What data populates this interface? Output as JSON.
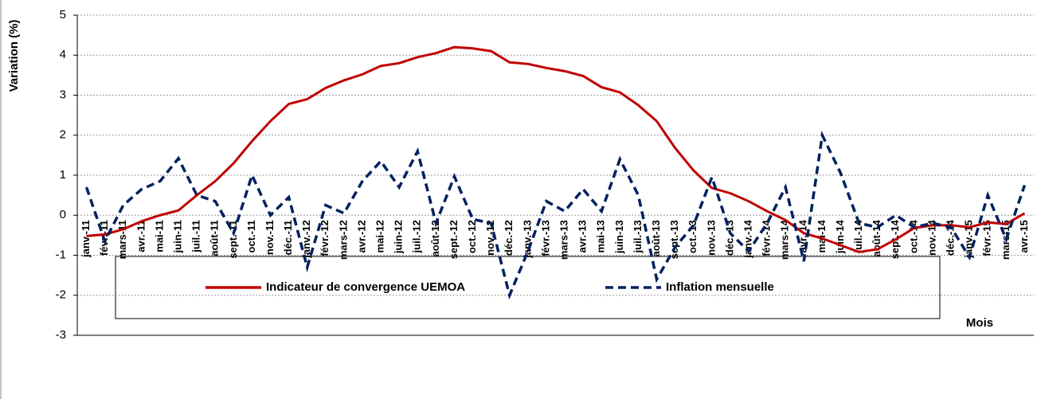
{
  "chart_data": {
    "type": "line",
    "ylabel": "Variation (%)",
    "xlabel": "Mois",
    "categories": [
      "janv.-11",
      "févr.-11",
      "mars-11",
      "avr.-11",
      "mai-11",
      "juin-11",
      "juil.-11",
      "août-11",
      "sept.-11",
      "oct.-11",
      "nov.-11",
      "déc.-11",
      "janv.-12",
      "févr.-12",
      "mars-12",
      "avr.-12",
      "mai-12",
      "juin-12",
      "juil.-12",
      "août-12",
      "sept.-12",
      "oct.-12",
      "nov.-12",
      "déc.-12",
      "janv.-13",
      "févr.-13",
      "mars-13",
      "avr.-13",
      "mai-13",
      "juin-13",
      "juil.-13",
      "août-13",
      "sept.-13",
      "oct.-13",
      "nov.-13",
      "déc.-13",
      "janv.-14",
      "févr.-14",
      "mars-14",
      "avr.-14",
      "mai-14",
      "juin-14",
      "juil.-14",
      "août-14",
      "sept.-14",
      "oct.-14",
      "nov.-14",
      "déc.-14",
      "janv.-15",
      "févr.-15",
      "mars-15",
      "avr.-15"
    ],
    "series": [
      {
        "name": "Indicateur de convergence UEMOA",
        "color": "#c00000",
        "dash": false,
        "values": [
          -0.52,
          -0.48,
          -0.35,
          -0.15,
          0.0,
          0.12,
          0.5,
          0.85,
          1.3,
          1.85,
          2.35,
          2.78,
          2.9,
          3.18,
          3.37,
          3.52,
          3.73,
          3.8,
          3.95,
          4.05,
          4.2,
          4.17,
          4.1,
          3.82,
          3.78,
          3.68,
          3.6,
          3.48,
          3.2,
          3.07,
          2.75,
          2.35,
          1.68,
          1.12,
          0.68,
          0.55,
          0.35,
          0.1,
          -0.12,
          -0.45,
          -0.58,
          -0.75,
          -0.92,
          -0.85,
          -0.6,
          -0.32,
          -0.25,
          -0.25,
          -0.3,
          -0.18,
          -0.22,
          0.05
        ]
      },
      {
        "name": "Inflation mensuelle",
        "color": "#002060",
        "dash": true,
        "values": [
          0.7,
          -0.65,
          0.25,
          0.65,
          0.85,
          1.42,
          0.5,
          0.35,
          -0.45,
          1.0,
          0.0,
          0.45,
          -1.3,
          0.25,
          0.05,
          0.85,
          1.35,
          0.7,
          1.6,
          -0.2,
          0.97,
          -0.1,
          -0.2,
          -2.0,
          -0.9,
          0.35,
          0.1,
          0.65,
          0.1,
          1.4,
          0.5,
          -1.6,
          -0.8,
          -0.25,
          0.95,
          -0.45,
          -0.9,
          -0.2,
          0.7,
          -1.15,
          2.0,
          1.05,
          -0.2,
          -0.3,
          0.0,
          -0.3,
          -0.2,
          -0.3,
          -1.05,
          0.5,
          -0.6,
          0.75
        ]
      }
    ],
    "ylim": [
      -3,
      5
    ],
    "yticks": [
      -3,
      -2,
      -1,
      0,
      1,
      2,
      3,
      4,
      5
    ],
    "grid": true
  }
}
